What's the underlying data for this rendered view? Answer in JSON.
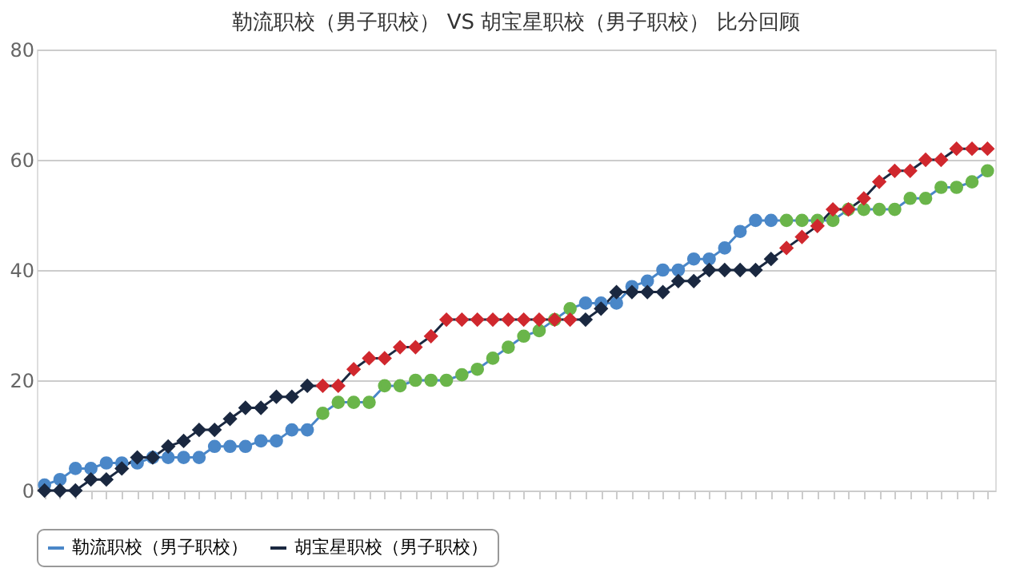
{
  "chart_data": {
    "type": "line",
    "title": "勒流职校（男子职校） VS 胡宝星职校（男子职校） 比分回顾",
    "categories": [
      null,
      null,
      null,
      null,
      null,
      null,
      null,
      null,
      null,
      null,
      null,
      null,
      null,
      null,
      null,
      null,
      null,
      null,
      null,
      null,
      null,
      null,
      null,
      null,
      null,
      null,
      null,
      null,
      null,
      null,
      null,
      null,
      null,
      null,
      null,
      null,
      null,
      null,
      null,
      null,
      null,
      null,
      null,
      null,
      null,
      null,
      null,
      null,
      null,
      null,
      null,
      null,
      null,
      null,
      null,
      null,
      null,
      null,
      null,
      null,
      null,
      null
    ],
    "series": [
      {
        "name": "勒流职校（男子职校）",
        "color": "#4a87c8",
        "marker": "circle",
        "values": [
          1,
          2,
          4,
          4,
          5,
          5,
          5,
          6,
          6,
          6,
          6,
          8,
          8,
          8,
          9,
          9,
          11,
          11,
          14,
          16,
          16,
          16,
          19,
          19,
          20,
          20,
          20,
          21,
          22,
          24,
          26,
          28,
          29,
          31,
          33,
          34,
          34,
          34,
          37,
          38,
          40,
          40,
          42,
          42,
          44,
          47,
          49,
          49,
          49,
          49,
          49,
          49,
          51,
          51,
          51,
          51,
          53,
          53,
          55,
          55,
          56,
          58
        ],
        "colors": [
          "#4a87c8",
          "#4a87c8",
          "#4a87c8",
          "#4a87c8",
          "#4a87c8",
          "#4a87c8",
          "#4a87c8",
          "#4a87c8",
          "#4a87c8",
          "#4a87c8",
          "#4a87c8",
          "#4a87c8",
          "#4a87c8",
          "#4a87c8",
          "#4a87c8",
          "#4a87c8",
          "#4a87c8",
          "#4a87c8",
          "#6ab54a",
          "#6ab54a",
          "#6ab54a",
          "#6ab54a",
          "#6ab54a",
          "#6ab54a",
          "#6ab54a",
          "#6ab54a",
          "#6ab54a",
          "#6ab54a",
          "#6ab54a",
          "#6ab54a",
          "#6ab54a",
          "#6ab54a",
          "#6ab54a",
          "#6ab54a",
          "#6ab54a",
          "#4a87c8",
          "#4a87c8",
          "#4a87c8",
          "#4a87c8",
          "#4a87c8",
          "#4a87c8",
          "#4a87c8",
          "#4a87c8",
          "#4a87c8",
          "#4a87c8",
          "#4a87c8",
          "#4a87c8",
          "#4a87c8",
          "#6ab54a",
          "#6ab54a",
          "#6ab54a",
          "#6ab54a",
          "#6ab54a",
          "#6ab54a",
          "#6ab54a",
          "#6ab54a",
          "#6ab54a",
          "#6ab54a",
          "#6ab54a",
          "#6ab54a",
          "#6ab54a",
          "#6ab54a"
        ]
      },
      {
        "name": "胡宝星职校（男子职校）",
        "color": "#1a2840",
        "marker": "diamond",
        "values": [
          0,
          0,
          0,
          2,
          2,
          4,
          6,
          6,
          8,
          9,
          11,
          11,
          13,
          15,
          15,
          17,
          17,
          19,
          19,
          19,
          22,
          24,
          24,
          26,
          26,
          28,
          31,
          31,
          31,
          31,
          31,
          31,
          31,
          31,
          31,
          31,
          33,
          36,
          36,
          36,
          36,
          38,
          38,
          40,
          40,
          40,
          40,
          42,
          44,
          46,
          48,
          51,
          51,
          53,
          56,
          58,
          58,
          60,
          60,
          62,
          62,
          62
        ],
        "colors": [
          "#1a2840",
          "#1a2840",
          "#1a2840",
          "#1a2840",
          "#1a2840",
          "#1a2840",
          "#1a2840",
          "#1a2840",
          "#1a2840",
          "#1a2840",
          "#1a2840",
          "#1a2840",
          "#1a2840",
          "#1a2840",
          "#1a2840",
          "#1a2840",
          "#1a2840",
          "#1a2840",
          "#d0282e",
          "#d0282e",
          "#d0282e",
          "#d0282e",
          "#d0282e",
          "#d0282e",
          "#d0282e",
          "#d0282e",
          "#d0282e",
          "#d0282e",
          "#d0282e",
          "#d0282e",
          "#d0282e",
          "#d0282e",
          "#d0282e",
          "#d0282e",
          "#d0282e",
          "#1a2840",
          "#1a2840",
          "#1a2840",
          "#1a2840",
          "#1a2840",
          "#1a2840",
          "#1a2840",
          "#1a2840",
          "#1a2840",
          "#1a2840",
          "#1a2840",
          "#1a2840",
          "#1a2840",
          "#d0282e",
          "#d0282e",
          "#d0282e",
          "#d0282e",
          "#d0282e",
          "#d0282e",
          "#d0282e",
          "#d0282e",
          "#d0282e",
          "#d0282e",
          "#d0282e",
          "#d0282e",
          "#d0282e",
          "#d0282e"
        ]
      }
    ],
    "ylim": [
      0,
      80
    ],
    "yticks": [
      0,
      20,
      40,
      60,
      80
    ],
    "grid": "y",
    "legend": "bottom",
    "tick_labels": "y"
  }
}
